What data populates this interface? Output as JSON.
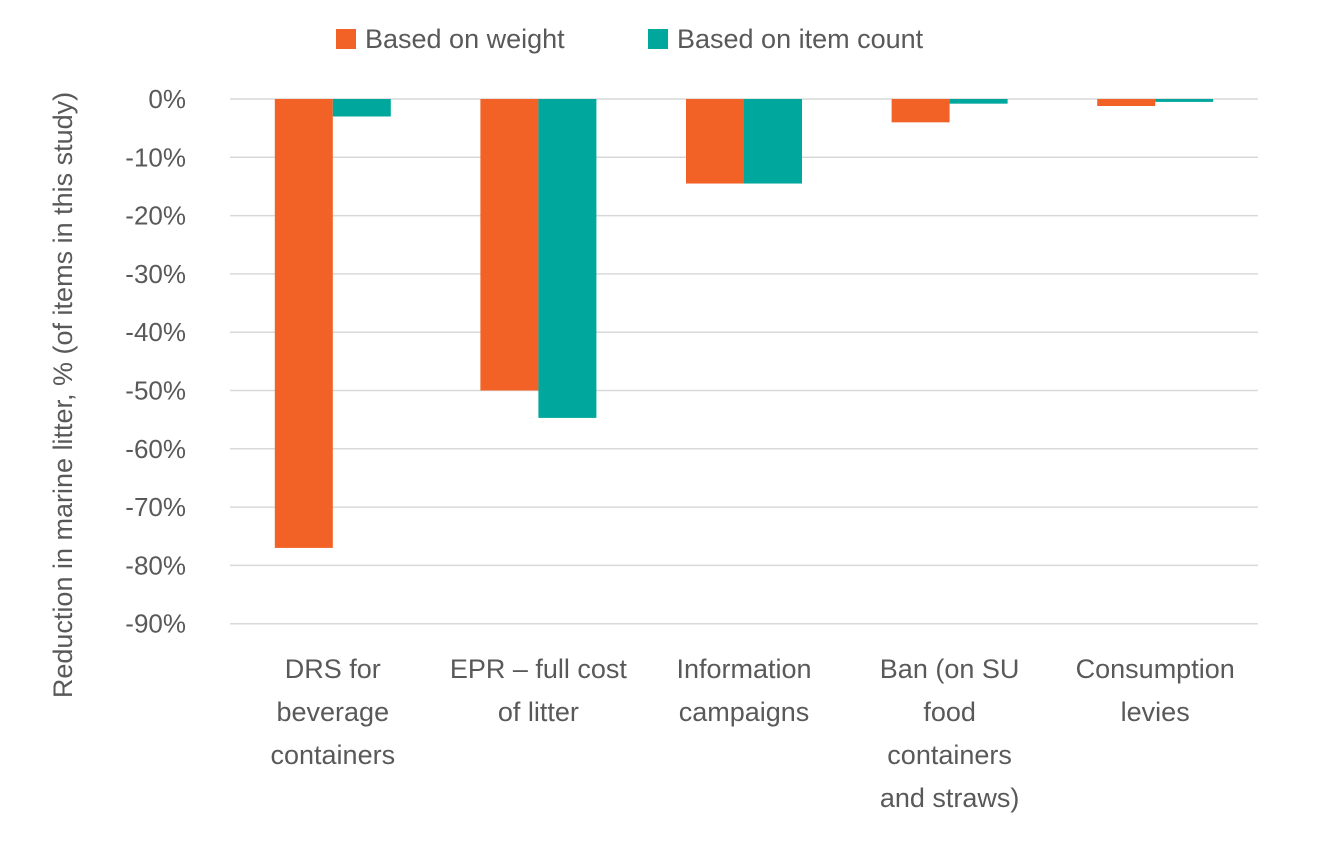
{
  "chart_data": {
    "type": "bar",
    "title": "",
    "xlabel": "",
    "ylabel": "Reduction in marine litter, % (of items in this study)",
    "ylim": [
      -90,
      0
    ],
    "yticks": [
      0,
      -10,
      -20,
      -30,
      -40,
      -50,
      -60,
      -70,
      -80,
      -90
    ],
    "ytick_labels": [
      "0%",
      "-10%",
      "-20%",
      "-30%",
      "-40%",
      "-50%",
      "-60%",
      "-70%",
      "-80%",
      "-90%"
    ],
    "grid": true,
    "legend_position": "top",
    "categories": [
      "DRS for beverage containers",
      "EPR – full cost of litter",
      "Information campaigns",
      "Ban (on SU food containers and straws)",
      "Consumption levies"
    ],
    "series": [
      {
        "name": "Based on weight",
        "color": "#f26125",
        "values": [
          -77,
          -50,
          -14.5,
          -4,
          -1.2
        ]
      },
      {
        "name": "Based on item count",
        "color": "#00a79d",
        "values": [
          -3,
          -54.7,
          -14.5,
          -0.8,
          -0.5
        ]
      }
    ]
  }
}
